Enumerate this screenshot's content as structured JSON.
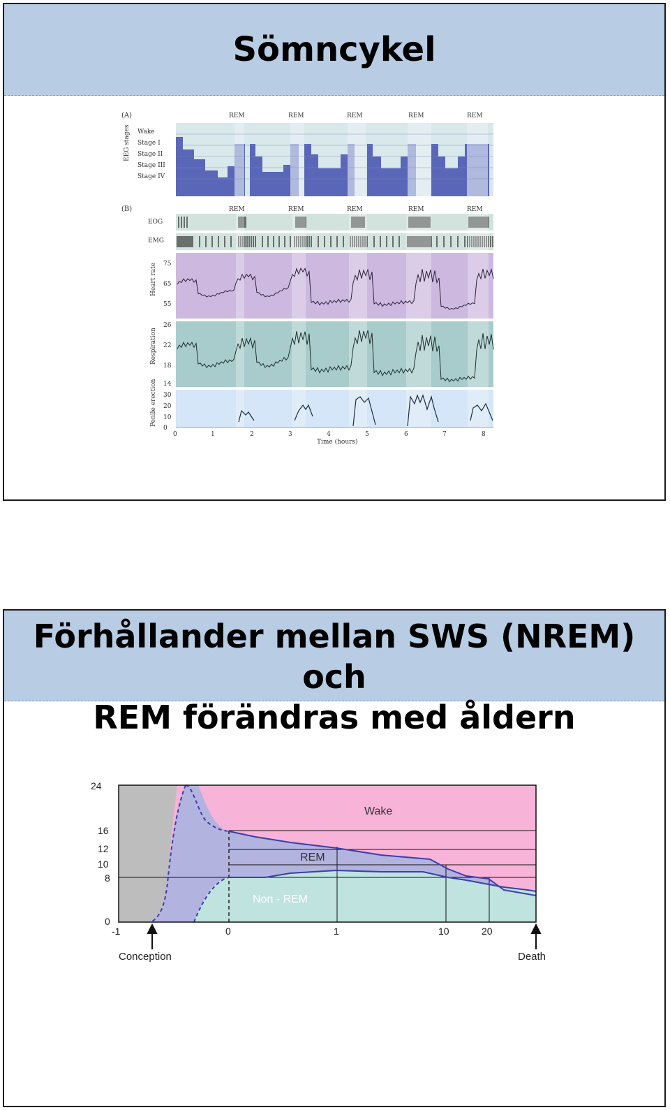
{
  "slide1": {
    "title": "Sömncykel",
    "panel_a_label": "(A)",
    "panel_b_label": "(B)",
    "rem_label": "REM",
    "eeg_axis_label": "EEG stages",
    "stages": [
      "Wake",
      "Stage I",
      "Stage II",
      "Stage III",
      "Stage IV"
    ],
    "eog_label": "EOG",
    "emg_label": "EMG",
    "heart_rate_label": "Heart rate",
    "heart_rate_ticks": [
      "75",
      "65",
      "55"
    ],
    "respiration_label": "Respiration",
    "respiration_ticks": [
      "26",
      "22",
      "18",
      "14"
    ],
    "penile_label": "Penile erection",
    "penile_ticks": [
      "30",
      "20",
      "10",
      "0"
    ],
    "time_ticks": [
      "0",
      "1",
      "2",
      "3",
      "4",
      "5",
      "6",
      "7",
      "8"
    ],
    "time_label": "Time (hours)"
  },
  "slide2": {
    "title_line1": "Förhållander mellan SWS (NREM) och",
    "title_line2": "REM förändras med åldern",
    "chart_data": {
      "type": "area",
      "y_ticks": [
        "24",
        "16",
        "12",
        "10",
        "8",
        "0"
      ],
      "x_ticks": [
        "-1",
        "0",
        "1",
        "10",
        "20"
      ],
      "ylim": [
        0,
        24
      ],
      "regions": [
        "Wake",
        "REM",
        "Non - REM"
      ],
      "annotations": [
        "Conception",
        "Death"
      ],
      "colors": {
        "wake": "#f7b3d8",
        "rem": "#b3b3e0",
        "nrem": "#bfe3df",
        "prenatal": "#bdbdbd",
        "line": "#3b3fa8"
      }
    }
  }
}
